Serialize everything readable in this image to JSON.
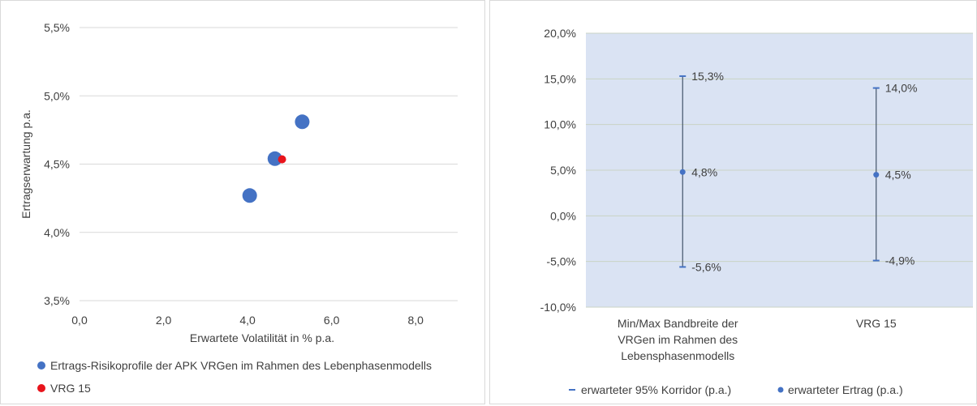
{
  "chart_data": [
    {
      "type": "scatter",
      "title": "",
      "xlabel": "Erwartete Volatilität in % p.a.",
      "ylabel": "Ertragserwartung  p.a.",
      "xlim": [
        0,
        9
      ],
      "ylim": [
        3.5,
        5.5
      ],
      "x_ticks": [
        "0,0",
        "2,0",
        "4,0",
        "6,0",
        "8,0"
      ],
      "x_tick_values": [
        0,
        2,
        4,
        6,
        8
      ],
      "y_ticks": [
        "5,5%",
        "5,0%",
        "4,5%",
        "4,0%",
        "3,5%"
      ],
      "y_tick_values": [
        5.5,
        5.0,
        4.5,
        4.0,
        3.5
      ],
      "grid": "horizontal",
      "legend_position": "bottom",
      "series": [
        {
          "name": "Ertrags-Risikoprofile der APK VRGen im Rahmen des Lebenphasenmodells",
          "color": "#4472c4",
          "points": [
            {
              "x": 4.05,
              "y": 4.27
            },
            {
              "x": 4.65,
              "y": 4.54
            },
            {
              "x": 5.3,
              "y": 4.81
            }
          ]
        },
        {
          "name": "VRG 15",
          "color": "#e8141c",
          "points": [
            {
              "x": 4.82,
              "y": 4.535
            }
          ]
        }
      ]
    },
    {
      "type": "errorbar",
      "title": "",
      "ylim": [
        -10,
        20
      ],
      "y_ticks": [
        "20,0%",
        "15,0%",
        "10,0%",
        "5,0%",
        "0,0%",
        "-5,0%",
        "-10,0%"
      ],
      "y_tick_values": [
        20,
        15,
        10,
        5,
        0,
        -5,
        -10
      ],
      "grid": "horizontal",
      "plot_background": "#dae3f3",
      "legend_position": "bottom",
      "categories": [
        [
          "Min/Max Bandbreite der",
          "VRGen im Rahmen des",
          "Lebensphasenmodells"
        ],
        [
          "VRG 15"
        ]
      ],
      "series": [
        {
          "name": "erwarteter 95% Korridor (p.a.)",
          "color": "#44546a",
          "ranges": [
            {
              "low": -5.6,
              "high": 15.3,
              "low_label": "-5,6%",
              "high_label": "15,3%"
            },
            {
              "low": -4.9,
              "high": 14.0,
              "low_label": "-4,9%",
              "high_label": "14,0%"
            }
          ]
        },
        {
          "name": "erwarteter Ertrag (p.a.)",
          "color": "#4472c4",
          "values": [
            4.8,
            4.5
          ],
          "labels": [
            "4,8%",
            "4,5%"
          ]
        }
      ]
    }
  ]
}
